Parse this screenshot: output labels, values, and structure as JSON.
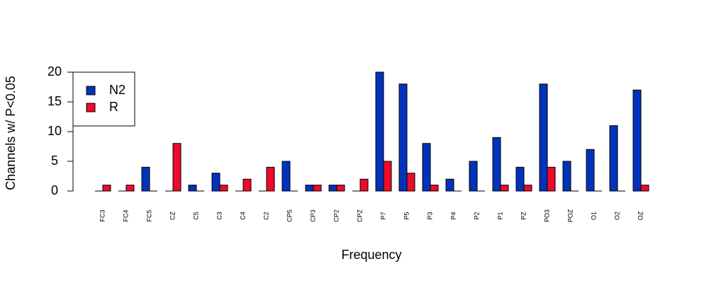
{
  "chart_data": {
    "type": "bar",
    "x_label": "Frequency",
    "y_label": "Channels w/ P<0.05",
    "categories": [
      "FC3",
      "FC4",
      "FC5",
      "CZ",
      "C5",
      "C3",
      "C4",
      "C2",
      "CP5",
      "CP3",
      "CP2",
      "CPZ",
      "P7",
      "P5",
      "P3",
      "P4",
      "P2",
      "P1",
      "PZ",
      "PO3",
      "POZ",
      "O1",
      "O2",
      "OZ"
    ],
    "series": [
      {
        "name": "N2",
        "color": "#0033bb",
        "values": [
          0,
          0,
          4,
          0,
          1,
          3,
          0,
          0,
          5,
          1,
          1,
          0,
          20,
          18,
          8,
          2,
          5,
          9,
          4,
          18,
          5,
          7,
          11,
          17
        ]
      },
      {
        "name": "R",
        "color": "#ee0a2a",
        "values": [
          1,
          1,
          0,
          8,
          0,
          1,
          2,
          4,
          0,
          1,
          1,
          2,
          5,
          3,
          1,
          0,
          0,
          1,
          1,
          4,
          0,
          0,
          0,
          1
        ]
      }
    ],
    "ylim": [
      0,
      20
    ],
    "yticks": [
      0,
      5,
      10,
      15,
      20
    ],
    "legend": "top-left"
  }
}
